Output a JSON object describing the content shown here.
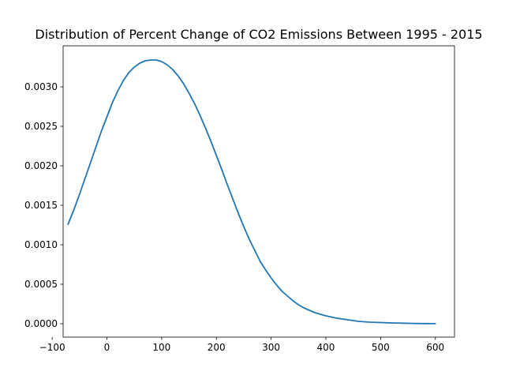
{
  "chart_data": {
    "type": "line",
    "title": "Distribution of Percent Change of CO2 Emissions Between 1995 - 2015",
    "xlabel": "",
    "ylabel": "",
    "xlim": [
      -80,
      635
    ],
    "ylim": [
      -0.00017,
      0.00352
    ],
    "grid": false,
    "x_ticks": [
      -100,
      0,
      100,
      200,
      300,
      400,
      500,
      600
    ],
    "x_tick_labels": [
      "−100",
      "0",
      "100",
      "200",
      "300",
      "400",
      "500",
      "600"
    ],
    "y_ticks": [
      0,
      0.0005,
      0.001,
      0.0015,
      0.002,
      0.0025,
      0.003
    ],
    "y_tick_labels": [
      "0.0000",
      "0.0005",
      "0.0010",
      "0.0015",
      "0.0020",
      "0.0025",
      "0.0030"
    ],
    "series": [
      {
        "color": "#1f77b4",
        "x": [
          -71,
          -60,
          -50,
          -40,
          -30,
          -20,
          -10,
          0,
          10,
          20,
          30,
          40,
          50,
          60,
          70,
          80,
          90,
          100,
          110,
          120,
          130,
          140,
          150,
          160,
          170,
          180,
          190,
          200,
          210,
          220,
          230,
          240,
          250,
          260,
          270,
          280,
          290,
          300,
          310,
          320,
          330,
          340,
          350,
          360,
          370,
          380,
          390,
          400,
          420,
          440,
          460,
          480,
          500,
          520,
          540,
          560,
          580,
          600
        ],
        "y": [
          0.00126,
          0.00145,
          0.00164,
          0.00184,
          0.00204,
          0.00224,
          0.00244,
          0.00262,
          0.0028,
          0.00295,
          0.00308,
          0.00318,
          0.00325,
          0.0033,
          0.00333,
          0.00334,
          0.00334,
          0.00332,
          0.00328,
          0.00322,
          0.00314,
          0.00304,
          0.00292,
          0.00279,
          0.00264,
          0.00248,
          0.00231,
          0.00213,
          0.00195,
          0.00176,
          0.00158,
          0.0014,
          0.00123,
          0.00107,
          0.00093,
          0.00079,
          0.00068,
          0.00058,
          0.00049,
          0.00041,
          0.00035,
          0.00029,
          0.00024,
          0.0002,
          0.00017,
          0.00014,
          0.00012,
          0.0001,
          7e-05,
          5e-05,
          3e-05,
          2e-05,
          1.5e-05,
          1e-05,
          7e-06,
          4e-06,
          2e-06,
          1e-06
        ]
      }
    ]
  }
}
